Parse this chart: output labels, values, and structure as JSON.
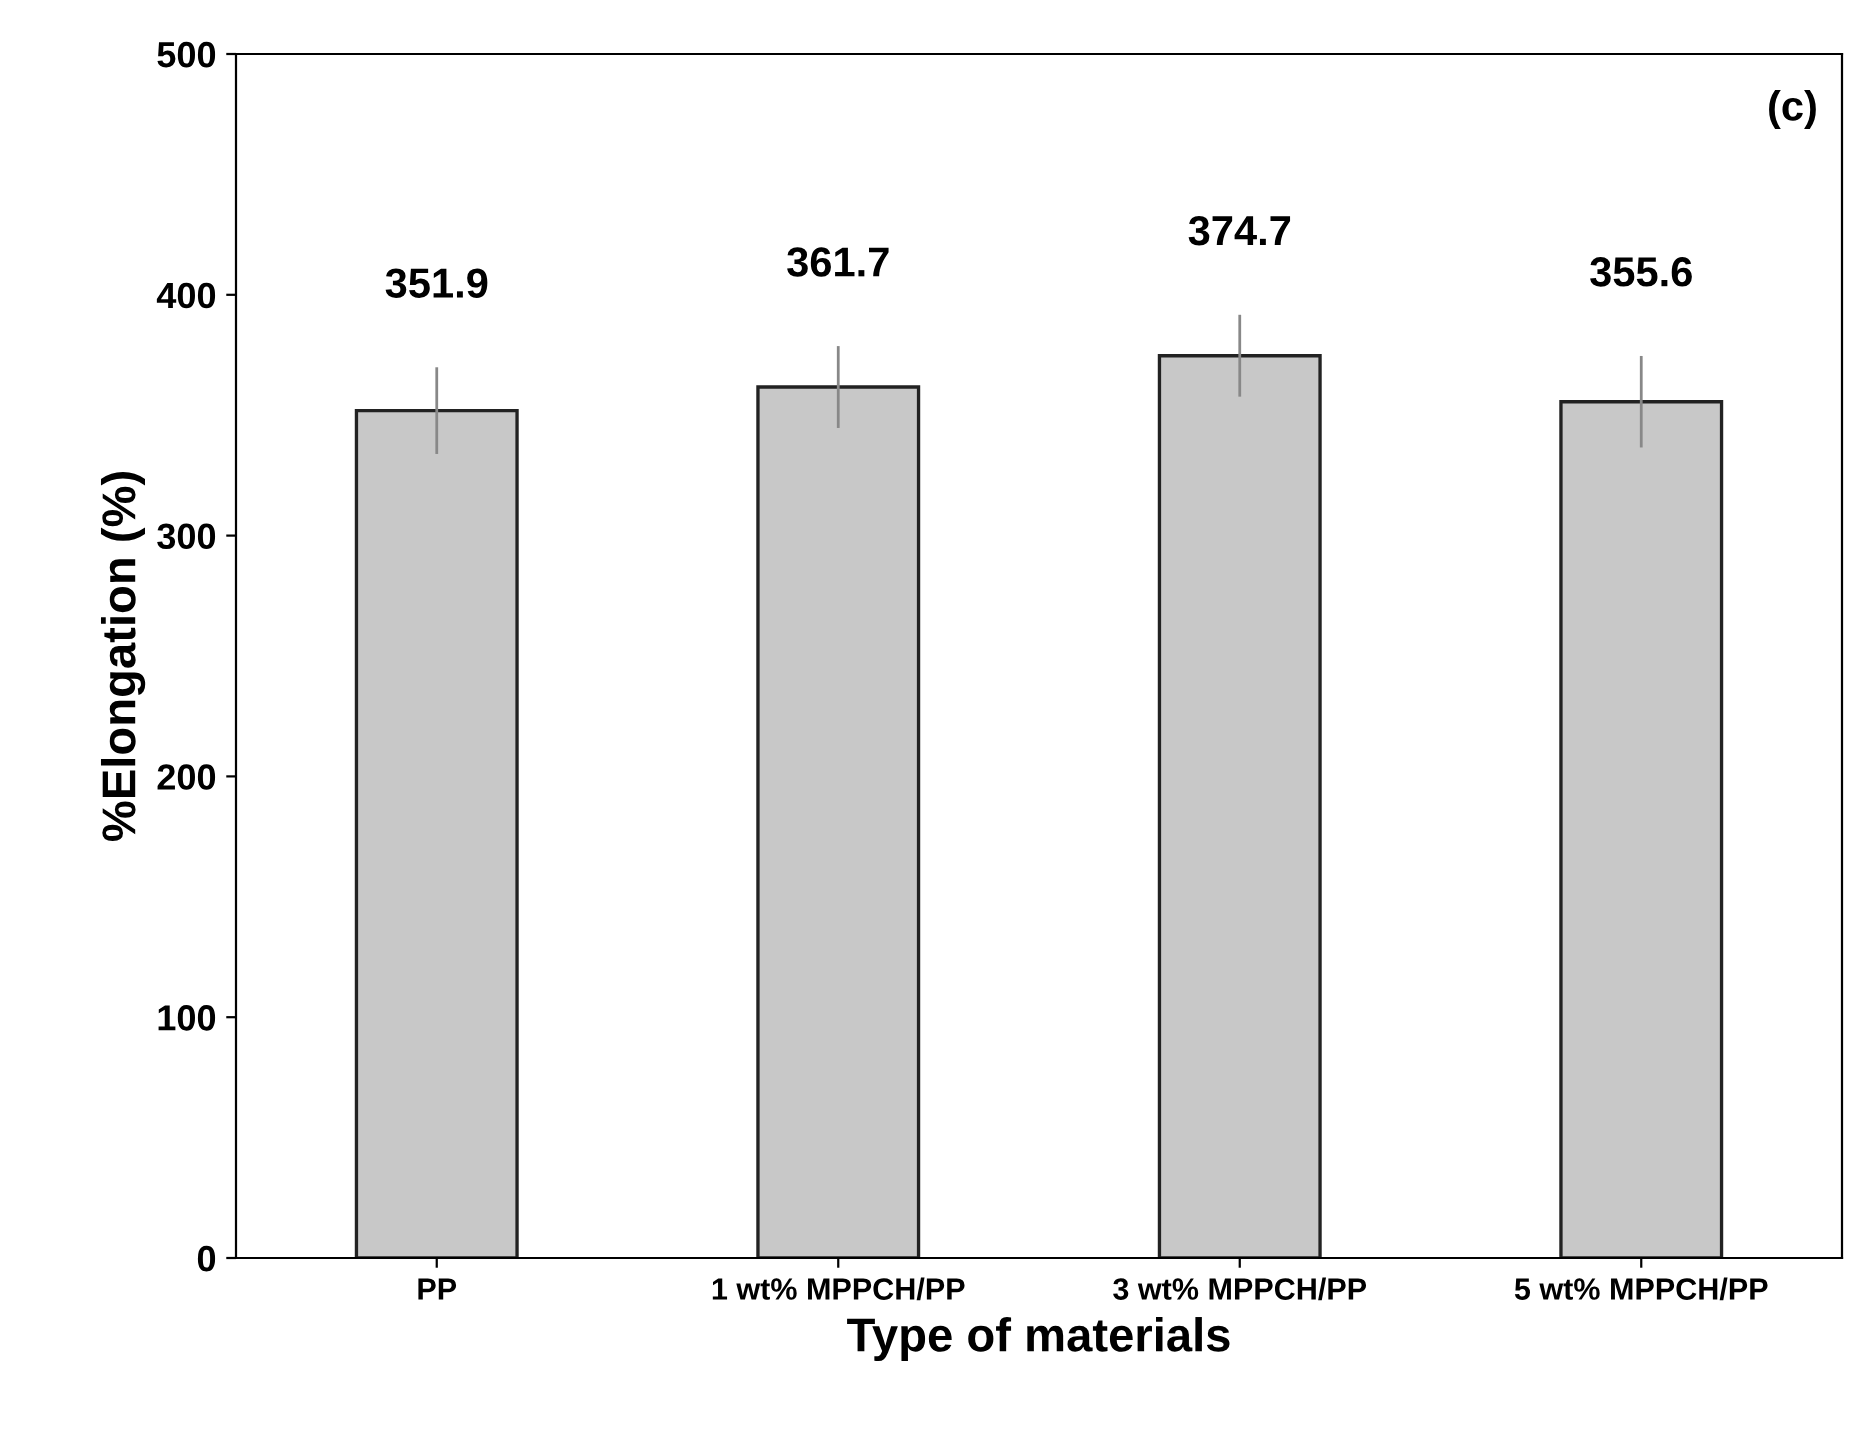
{
  "chart_data": {
    "type": "bar",
    "xlabel": "Type of materials",
    "ylabel": "%Elongation (%)",
    "categories": [
      "PP",
      "1 wt% MPPCH/PP",
      "3 wt% MPPCH/PP",
      "5 wt% MPPCH/PP"
    ],
    "values": [
      351.9,
      361.7,
      374.7,
      355.6
    ],
    "errors": [
      18,
      17,
      17,
      19
    ],
    "color": "#c8c8c8",
    "ylim": [
      0,
      500
    ],
    "yticks": [
      0,
      100,
      200,
      300,
      400,
      500
    ],
    "data_labels": true,
    "grid": false,
    "legend": false,
    "annotations": [
      "(c)"
    ]
  }
}
